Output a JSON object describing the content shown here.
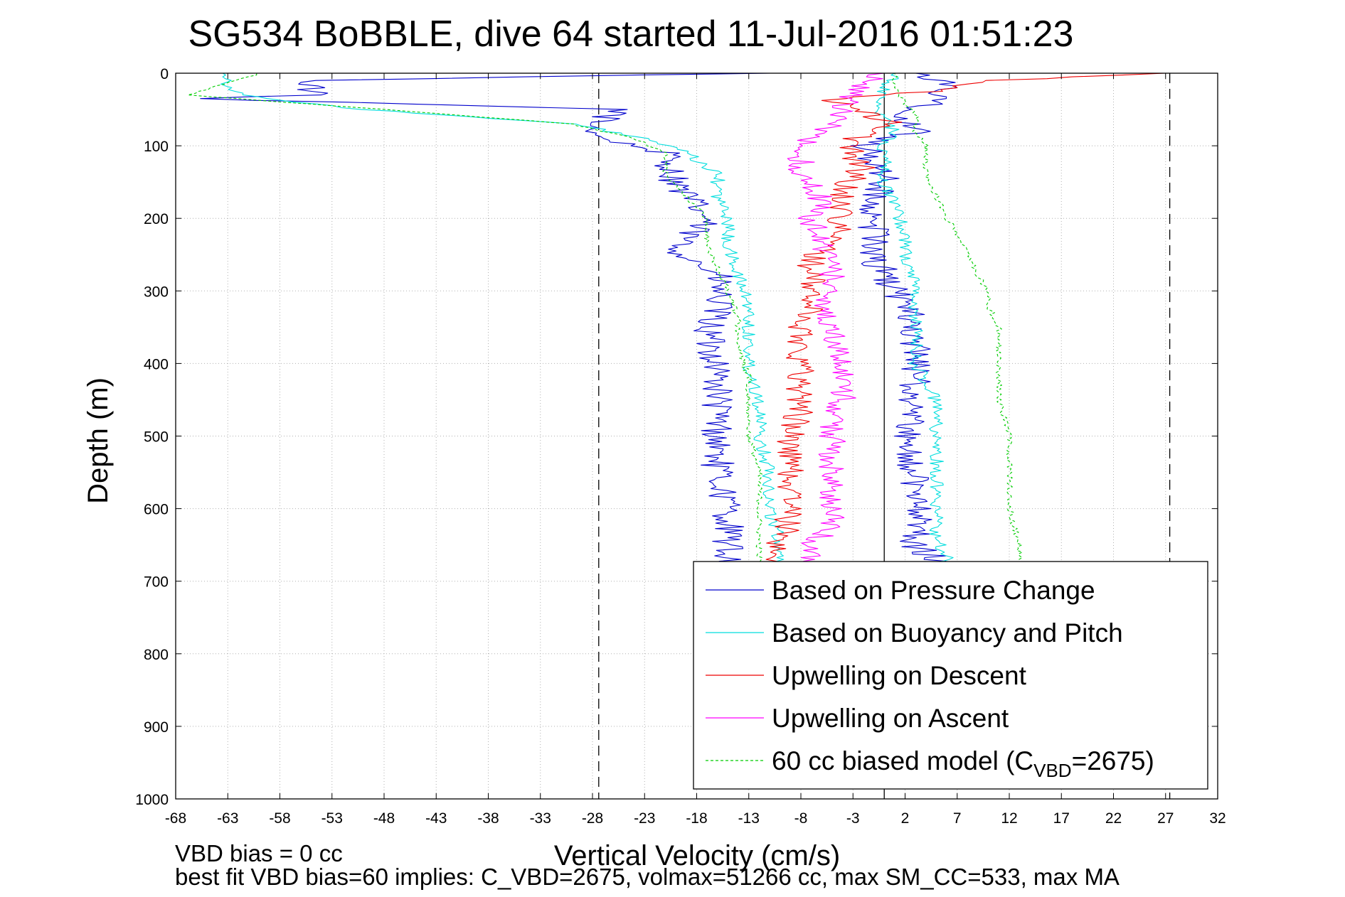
{
  "chart_data": {
    "type": "line",
    "title": "SG534 BoBBLE, dive 64 started 11-Jul-2016 01:51:23",
    "xlabel": "Vertical Velocity (cm/s)",
    "ylabel": "Depth (m)",
    "xlim": [
      -68,
      32
    ],
    "ylim": [
      1000,
      0
    ],
    "y_reversed": true,
    "grid": true,
    "xticks": [
      -68,
      -63,
      -58,
      -53,
      -48,
      -43,
      -38,
      -33,
      -28,
      -23,
      -18,
      -13,
      -8,
      -3,
      2,
      7,
      12,
      17,
      22,
      27,
      32
    ],
    "yticks": [
      0,
      100,
      200,
      300,
      400,
      500,
      600,
      700,
      800,
      900,
      1000
    ],
    "reference_lines": [
      {
        "x": 0,
        "style": "solid",
        "color": "#000000"
      },
      {
        "x": -27.4,
        "style": "dashed",
        "color": "#000000"
      },
      {
        "x": 27.4,
        "style": "dashed",
        "color": "#000000"
      }
    ],
    "legend_position": "bottom-right",
    "series": [
      {
        "name": "Based on Pressure Change",
        "color": "#0000cc",
        "noise": 1.6,
        "points": [
          [
            -12,
            0
          ],
          [
            -55,
            10
          ],
          [
            -55,
            30
          ],
          [
            -67,
            35
          ],
          [
            -25,
            50
          ],
          [
            -28,
            70
          ],
          [
            -27,
            90
          ],
          [
            -21,
            110
          ],
          [
            -20,
            150
          ],
          [
            -19,
            170
          ],
          [
            -17,
            200
          ],
          [
            -20,
            240
          ],
          [
            -16,
            280
          ],
          [
            -16,
            320
          ],
          [
            -17,
            360
          ],
          [
            -16,
            400
          ],
          [
            -16,
            450
          ],
          [
            -16,
            500
          ],
          [
            -16,
            550
          ],
          [
            -15,
            600
          ],
          [
            -15,
            650
          ],
          [
            -15,
            680
          ],
          [
            3,
            700
          ],
          [
            5,
            670
          ],
          [
            3,
            650
          ],
          [
            3,
            600
          ],
          [
            3,
            550
          ],
          [
            2,
            500
          ],
          [
            3,
            450
          ],
          [
            3,
            400
          ],
          [
            3,
            350
          ],
          [
            2,
            320
          ],
          [
            1,
            300
          ],
          [
            0,
            280
          ],
          [
            -1,
            250
          ],
          [
            -1,
            220
          ],
          [
            -1,
            180
          ],
          [
            0,
            150
          ],
          [
            -1,
            120
          ],
          [
            -2,
            100
          ],
          [
            3,
            80
          ],
          [
            1,
            60
          ],
          [
            5,
            40
          ],
          [
            6,
            20
          ],
          [
            5,
            8
          ],
          [
            3,
            0
          ]
        ]
      },
      {
        "name": "Based on Buoyancy and Pitch",
        "color": "#00dddd",
        "noise": 0.7,
        "points": [
          [
            -63,
            0
          ],
          [
            -63,
            15
          ],
          [
            -62,
            30
          ],
          [
            -50,
            50
          ],
          [
            -30,
            70
          ],
          [
            -23,
            90
          ],
          [
            -19,
            110
          ],
          [
            -16,
            140
          ],
          [
            -16,
            170
          ],
          [
            -15,
            200
          ],
          [
            -15,
            240
          ],
          [
            -14,
            280
          ],
          [
            -13,
            320
          ],
          [
            -13,
            360
          ],
          [
            -13,
            400
          ],
          [
            -12,
            450
          ],
          [
            -12,
            500
          ],
          [
            -11,
            550
          ],
          [
            -11,
            600
          ],
          [
            -10,
            650
          ],
          [
            -10,
            690
          ],
          [
            -4,
            700
          ],
          [
            6,
            670
          ],
          [
            5,
            640
          ],
          [
            5,
            600
          ],
          [
            5,
            550
          ],
          [
            5,
            500
          ],
          [
            5,
            450
          ],
          [
            3,
            400
          ],
          [
            3,
            350
          ],
          [
            3,
            300
          ],
          [
            2,
            250
          ],
          [
            2,
            220
          ],
          [
            1,
            180
          ],
          [
            0,
            150
          ],
          [
            0,
            120
          ],
          [
            0,
            100
          ],
          [
            1,
            80
          ],
          [
            0,
            60
          ],
          [
            -1,
            40
          ],
          [
            0,
            20
          ],
          [
            1,
            5
          ],
          [
            1,
            0
          ]
        ]
      },
      {
        "name": "Upwelling on Descent",
        "color": "#ee0000",
        "noise": 1.4,
        "points": [
          [
            27,
            0
          ],
          [
            10,
            10
          ],
          [
            5,
            25
          ],
          [
            -5,
            35
          ],
          [
            -3,
            50
          ],
          [
            1,
            70
          ],
          [
            -3,
            90
          ],
          [
            -3,
            110
          ],
          [
            -2,
            130
          ],
          [
            -4,
            160
          ],
          [
            -4,
            200
          ],
          [
            -5,
            230
          ],
          [
            -7,
            260
          ],
          [
            -7,
            290
          ],
          [
            -7,
            320
          ],
          [
            -8,
            350
          ],
          [
            -8,
            380
          ],
          [
            -8,
            420
          ],
          [
            -8,
            460
          ],
          [
            -9,
            500
          ],
          [
            -9,
            550
          ],
          [
            -9,
            600
          ],
          [
            -10,
            650
          ],
          [
            -11,
            690
          ]
        ]
      },
      {
        "name": "Upwelling on Ascent",
        "color": "#ff00ff",
        "noise": 1.3,
        "points": [
          [
            -7,
            700
          ],
          [
            -7,
            650
          ],
          [
            -5,
            620
          ],
          [
            -5,
            600
          ],
          [
            -5,
            560
          ],
          [
            -5,
            520
          ],
          [
            -5,
            480
          ],
          [
            -4,
            450
          ],
          [
            -4,
            400
          ],
          [
            -5,
            360
          ],
          [
            -6,
            330
          ],
          [
            -5,
            300
          ],
          [
            -5,
            270
          ],
          [
            -6,
            240
          ],
          [
            -7,
            200
          ],
          [
            -6,
            170
          ],
          [
            -8,
            140
          ],
          [
            -8,
            120
          ],
          [
            -8,
            100
          ],
          [
            -5,
            70
          ],
          [
            -4,
            50
          ],
          [
            -3,
            30
          ],
          [
            -2,
            15
          ],
          [
            -1,
            5
          ],
          [
            0,
            0
          ]
        ]
      },
      {
        "name": "60 cc biased model (C_VBD=2675)",
        "color": "#00cc00",
        "dashed": true,
        "noise": 0.3,
        "points": [
          [
            -60,
            0
          ],
          [
            -62,
            10
          ],
          [
            -67,
            30
          ],
          [
            -48,
            50
          ],
          [
            -30,
            70
          ],
          [
            -24,
            90
          ],
          [
            -21,
            110
          ],
          [
            -21,
            140
          ],
          [
            -19,
            170
          ],
          [
            -17,
            200
          ],
          [
            -17,
            240
          ],
          [
            -16,
            270
          ],
          [
            -15,
            300
          ],
          [
            -14,
            340
          ],
          [
            -14,
            380
          ],
          [
            -13,
            420
          ],
          [
            -13,
            460
          ],
          [
            -13,
            500
          ],
          [
            -12,
            550
          ],
          [
            -12,
            600
          ],
          [
            -12,
            650
          ],
          [
            -12,
            690
          ],
          [
            13,
            700
          ],
          [
            13,
            650
          ],
          [
            12,
            600
          ],
          [
            12,
            550
          ],
          [
            12,
            500
          ],
          [
            11,
            450
          ],
          [
            11,
            400
          ],
          [
            11,
            350
          ],
          [
            10,
            320
          ],
          [
            10,
            300
          ],
          [
            9,
            280
          ],
          [
            8,
            250
          ],
          [
            7,
            220
          ],
          [
            6,
            200
          ],
          [
            5,
            170
          ],
          [
            4,
            140
          ],
          [
            4,
            120
          ],
          [
            4,
            100
          ],
          [
            3,
            80
          ],
          [
            3,
            60
          ],
          [
            2,
            40
          ],
          [
            1,
            20
          ],
          [
            1,
            0
          ]
        ]
      }
    ]
  },
  "legend": {
    "items": [
      {
        "label": "Based on Pressure Change",
        "color": "#0000cc",
        "dashed": false
      },
      {
        "label": "Based on Buoyancy and Pitch",
        "color": "#00dddd",
        "dashed": false
      },
      {
        "label": "Upwelling on Descent",
        "color": "#ee0000",
        "dashed": false
      },
      {
        "label": "Upwelling on Ascent",
        "color": "#ff00ff",
        "dashed": false
      },
      {
        "label": "60 cc biased model (C",
        "sub": "VBD",
        "suffix": "=2675)",
        "color": "#00cc00",
        "dashed": true
      }
    ]
  },
  "footer": {
    "line1": "VBD bias = 0 cc",
    "line2": "best fit VBD bias=60 implies: C_VBD=2675, volmax=51266 cc, max SM_CC=533, max MA"
  }
}
